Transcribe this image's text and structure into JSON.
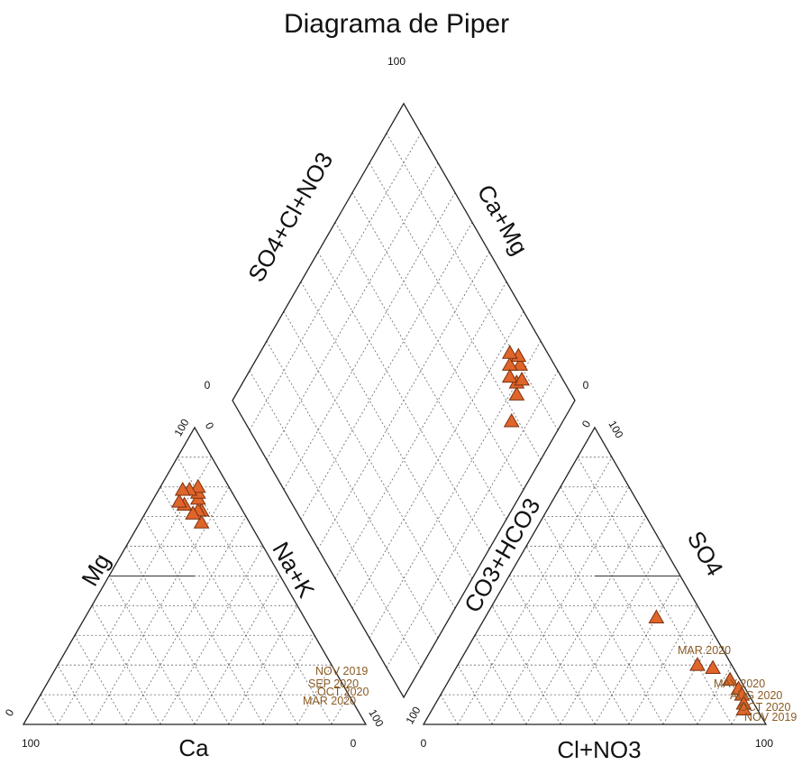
{
  "chart_data": {
    "type": "scatter",
    "subtype": "piper-diagram",
    "title": "Diagrama de Piper",
    "cation_triangle": {
      "labels": {
        "left": "Mg",
        "right": "Na+K",
        "bottom": "Ca"
      },
      "ticks": {
        "bottom_left": "100",
        "bottom_right": "0",
        "apex_left": "100",
        "apex_right": "0",
        "right_base_left": "0",
        "right_base_right": "100"
      },
      "points": [
        {
          "ca": 14,
          "na": 18
        },
        {
          "ca": 12,
          "na": 16
        },
        {
          "ca": 13,
          "na": 15
        },
        {
          "ca": 11,
          "na": 13
        },
        {
          "ca": 10,
          "na": 12
        },
        {
          "ca": 15,
          "na": 14
        },
        {
          "ca": 9,
          "na": 11
        },
        {
          "ca": 16,
          "na": 10
        },
        {
          "ca": 17,
          "na": 8
        },
        {
          "ca": 12,
          "na": 9
        },
        {
          "ca": 14,
          "na": 7
        }
      ],
      "point_labels": [
        "NOV 2019",
        "SEP 2020",
        "OCT 2020",
        "MAR 2020"
      ]
    },
    "anion_triangle": {
      "labels": {
        "left": "CO3+HCO3",
        "right": "SO4",
        "bottom": "Cl+NO3"
      },
      "ticks": {
        "bottom_left": "0",
        "bottom_right": "100",
        "apex_left": "0",
        "apex_right": "100",
        "left_base_left": "100",
        "left_base_right": "0"
      },
      "points": [
        {
          "cl": 50,
          "so4": 36
        },
        {
          "cl": 70,
          "so4": 20
        },
        {
          "cl": 75,
          "so4": 19
        },
        {
          "cl": 82,
          "so4": 15
        },
        {
          "cl": 86,
          "so4": 12
        },
        {
          "cl": 88,
          "so4": 10
        },
        {
          "cl": 90,
          "so4": 7
        },
        {
          "cl": 91,
          "so4": 5
        }
      ],
      "point_labels": [
        "MAR 2020",
        "MAY 2020",
        "AUG 2020",
        "OCT 2020",
        "NOV 2019"
      ]
    },
    "diamond": {
      "labels": {
        "upper_left": "SO4+Cl+NO3",
        "upper_right": "Ca+Mg"
      },
      "ticks": {
        "top": "100",
        "left": "0",
        "right": "0"
      },
      "points": [
        {
          "so4cl": 84,
          "na": 18
        },
        {
          "so4cl": 86,
          "na": 20
        },
        {
          "so4cl": 88,
          "na": 19
        },
        {
          "so4cl": 90,
          "na": 22
        },
        {
          "so4cl": 87,
          "na": 25
        },
        {
          "so4cl": 91,
          "na": 24
        },
        {
          "so4cl": 89,
          "na": 27
        },
        {
          "so4cl": 85,
          "na": 23
        },
        {
          "so4cl": 78,
          "na": 15
        }
      ]
    },
    "grid": true,
    "marker": "triangle",
    "marker_color": "#e0652a",
    "label_color": "#8a5a22"
  }
}
